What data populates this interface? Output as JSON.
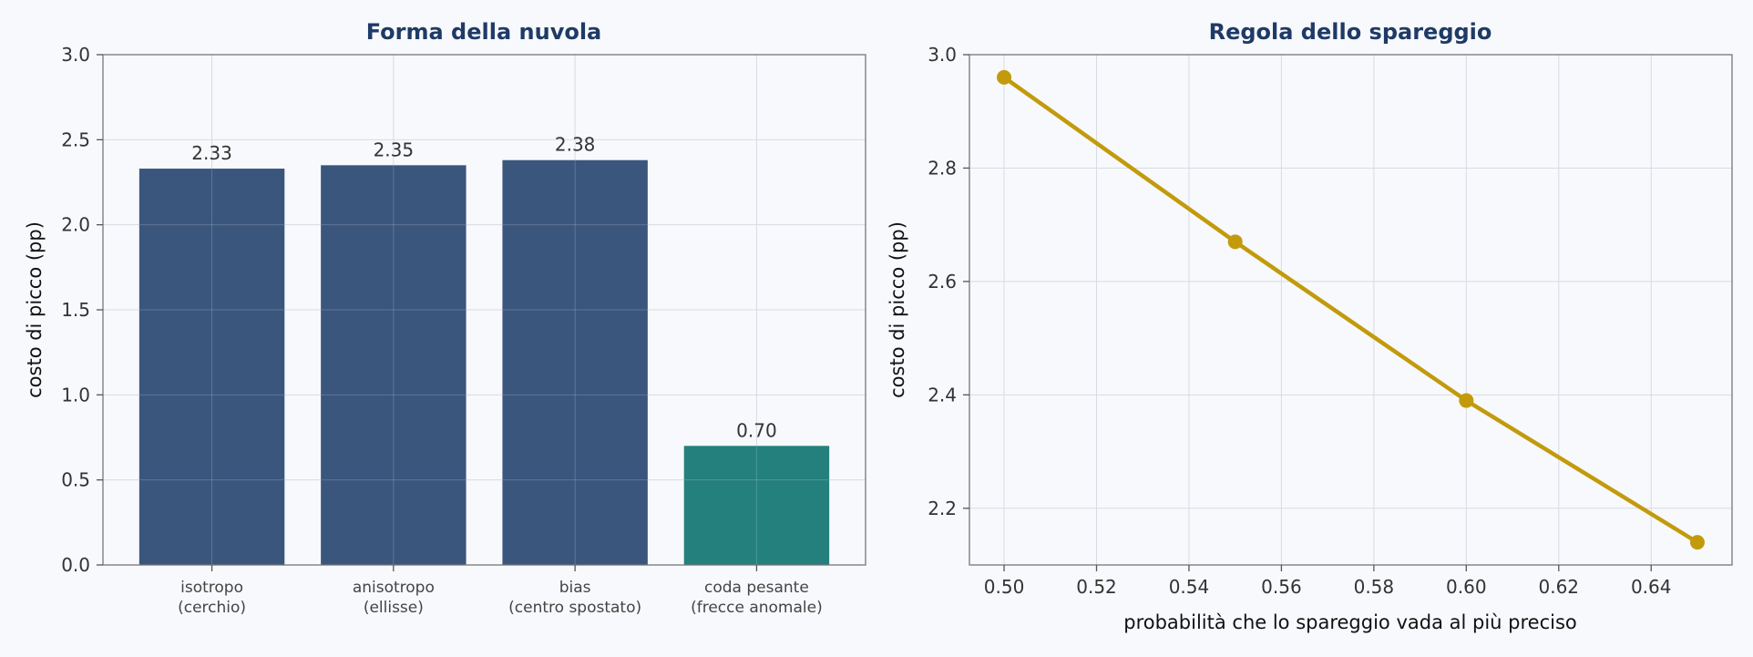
{
  "colors": {
    "bar_primary": "#3b567d",
    "bar_highlight": "#23807c",
    "line": "#c29a0c",
    "title": "#1f3a66"
  },
  "chart_data": [
    {
      "type": "bar",
      "title": "Forma della nuvola",
      "xlabel": "",
      "ylabel": "costo di picco (pp)",
      "categories": [
        [
          "isotropo",
          "(cerchio)"
        ],
        [
          "anisotropo",
          "(ellisse)"
        ],
        [
          "bias",
          "(centro spostato)"
        ],
        [
          "coda pesante",
          "(frecce anomale)"
        ]
      ],
      "values": [
        2.33,
        2.35,
        2.38,
        0.7
      ],
      "data_labels": [
        "2.33",
        "2.35",
        "2.38",
        "0.70"
      ],
      "bar_colors": [
        "#3b567d",
        "#3b567d",
        "#3b567d",
        "#23807c"
      ],
      "ylim": [
        0,
        3.0
      ],
      "yticks": [
        0.0,
        0.5,
        1.0,
        1.5,
        2.0,
        2.5,
        3.0
      ],
      "ytick_labels": [
        "0.0",
        "0.5",
        "1.0",
        "1.5",
        "2.0",
        "2.5",
        "3.0"
      ],
      "grid": true
    },
    {
      "type": "line",
      "title": "Regola dello spareggio",
      "xlabel": "probabilità che lo spareggio vada al più preciso",
      "ylabel": "costo di picco (pp)",
      "x": [
        0.5,
        0.55,
        0.6,
        0.65
      ],
      "y": [
        2.96,
        2.67,
        2.39,
        2.14
      ],
      "xlim": [
        0.4925,
        0.6575
      ],
      "ylim": [
        2.1,
        3.0
      ],
      "xticks": [
        0.5,
        0.52,
        0.54,
        0.56,
        0.58,
        0.6,
        0.62,
        0.64
      ],
      "xtick_labels": [
        "0.50",
        "0.52",
        "0.54",
        "0.56",
        "0.58",
        "0.60",
        "0.62",
        "0.64"
      ],
      "yticks": [
        2.2,
        2.4,
        2.6,
        2.8,
        3.0
      ],
      "ytick_labels": [
        "2.2",
        "2.4",
        "2.6",
        "2.8",
        "3.0"
      ],
      "grid": true
    }
  ]
}
